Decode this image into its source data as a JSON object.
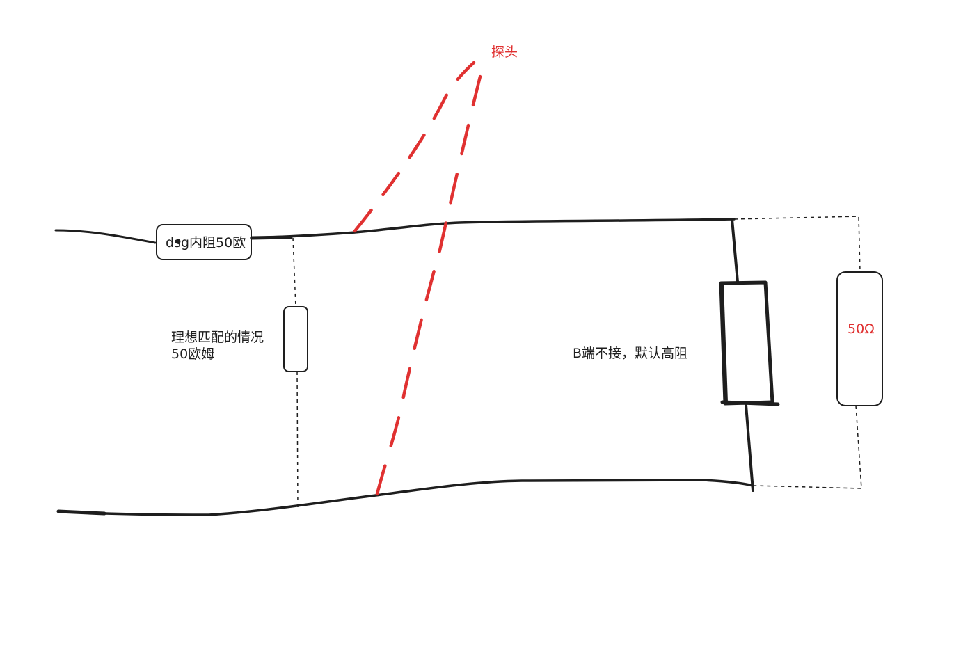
{
  "labels": {
    "probe": "探头",
    "source": "dsg内阻50欧",
    "ideal_match_line1": "理想匹配的情况",
    "ideal_match_line2": "50欧姆",
    "b_end": "B端不接，默认高阻",
    "ohm_value": "50Ω"
  },
  "colors": {
    "ink": "#1e1e1e",
    "accent_red": "#e03131",
    "background": "#ffffff"
  }
}
